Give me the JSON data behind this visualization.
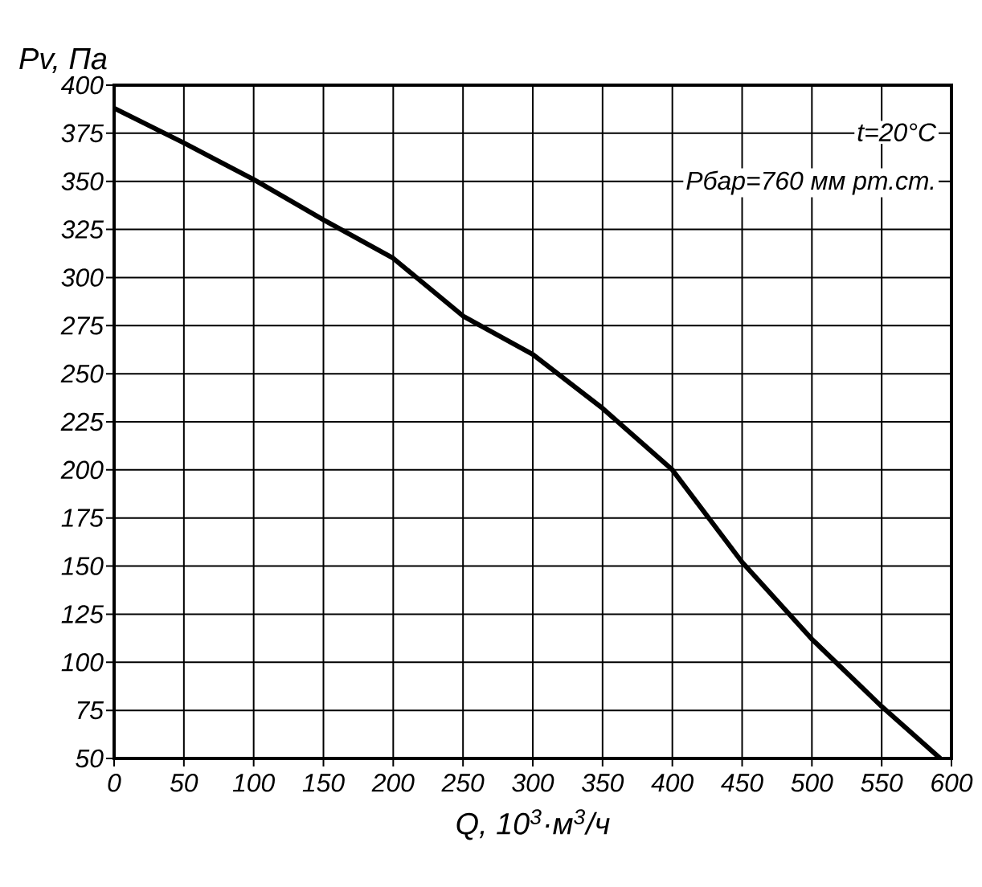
{
  "chart_data": {
    "type": "line",
    "xlabel": "Q, 10$^{3}$·м$^{3}$/ч",
    "ylabel": "Pv,  Па",
    "annotations": [
      "t=20°C",
      "Рбар=760 мм рт.ст."
    ],
    "x": [
      0,
      50,
      100,
      150,
      200,
      250,
      300,
      350,
      400,
      450,
      500,
      550,
      592
    ],
    "series": [
      {
        "color": "#000000",
        "values": [
          388,
          370,
          351,
          330,
          310,
          280,
          260,
          232,
          200,
          152,
          112,
          77,
          50
        ]
      }
    ],
    "xlim": [
      0,
      600
    ],
    "ylim": [
      50,
      400
    ],
    "xticks": [
      0,
      50,
      100,
      150,
      200,
      250,
      300,
      350,
      400,
      450,
      500,
      550,
      600
    ],
    "yticks": [
      50,
      75,
      100,
      125,
      150,
      175,
      200,
      225,
      250,
      275,
      300,
      325,
      350,
      375,
      400
    ],
    "grid": true,
    "marker": "none",
    "line_style": "solid"
  }
}
